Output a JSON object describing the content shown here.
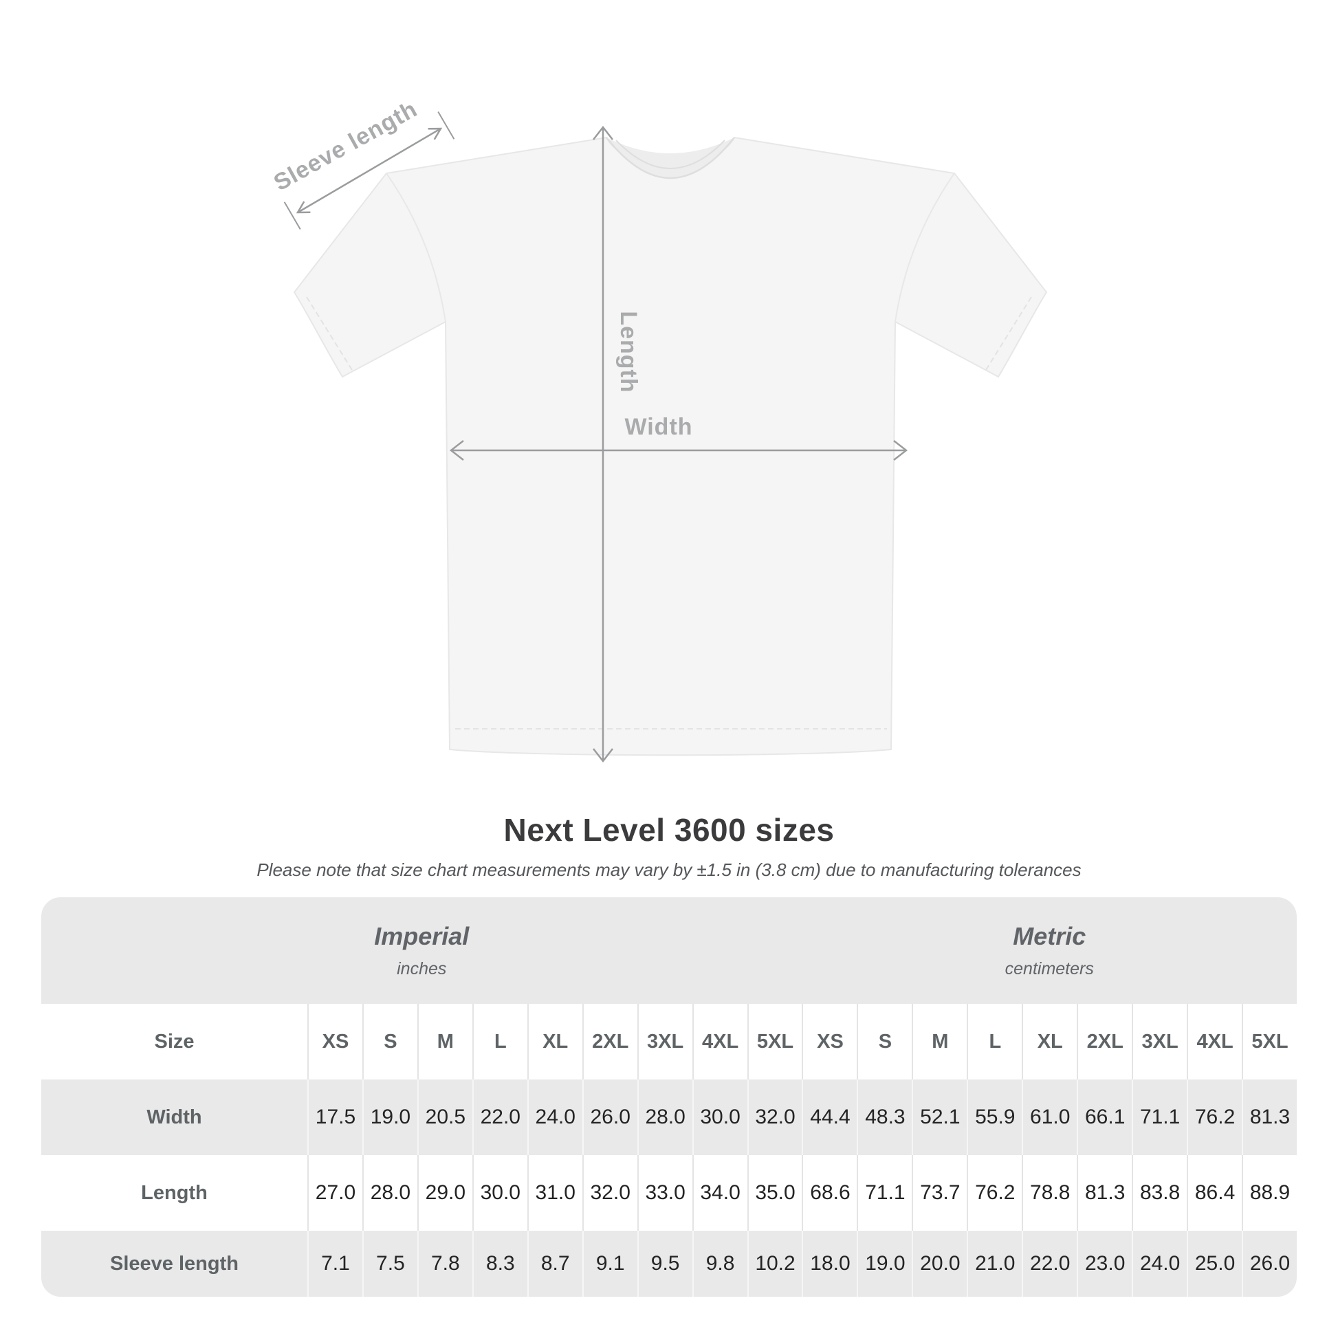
{
  "diagram": {
    "sleeve_length_label": "Sleeve length",
    "length_label": "Length",
    "width_label": "Width"
  },
  "header": {
    "title": "Next Level 3600 sizes",
    "subtitle": "Please note that size chart measurements may vary by ±1.5 in (3.8 cm) due to manufacturing tolerances"
  },
  "chart_data": {
    "type": "table",
    "title": "Next Level 3600 sizes",
    "subtitle": "Please note that size chart measurements may vary by ±1.5 in (3.8 cm) due to manufacturing tolerances",
    "unit_groups": [
      {
        "name": "Imperial",
        "unit": "inches"
      },
      {
        "name": "Metric",
        "unit": "centimeters"
      }
    ],
    "size_column_label": "Size",
    "columns": [
      "XS",
      "S",
      "M",
      "L",
      "XL",
      "2XL",
      "3XL",
      "4XL",
      "5XL"
    ],
    "rows": [
      {
        "label": "Width",
        "imperial": [
          "17.5",
          "19.0",
          "20.5",
          "22.0",
          "24.0",
          "26.0",
          "28.0",
          "30.0",
          "32.0"
        ],
        "metric": [
          "44.4",
          "48.3",
          "52.1",
          "55.9",
          "61.0",
          "66.1",
          "71.1",
          "76.2",
          "81.3"
        ]
      },
      {
        "label": "Length",
        "imperial": [
          "27.0",
          "28.0",
          "29.0",
          "30.0",
          "31.0",
          "32.0",
          "33.0",
          "34.0",
          "35.0"
        ],
        "metric": [
          "68.6",
          "71.1",
          "73.7",
          "76.2",
          "78.8",
          "81.3",
          "83.8",
          "86.4",
          "88.9"
        ]
      },
      {
        "label": "Sleeve length",
        "imperial": [
          "7.1",
          "7.5",
          "7.8",
          "8.3",
          "8.7",
          "9.1",
          "9.5",
          "9.8",
          "10.2"
        ],
        "metric": [
          "18.0",
          "19.0",
          "20.0",
          "21.0",
          "22.0",
          "23.0",
          "24.0",
          "25.0",
          "26.0"
        ]
      }
    ]
  },
  "colors": {
    "table_band": "#e9e9e9",
    "row_alt_white": "#ffffff",
    "header_text": "#5e6366",
    "value_text": "#242424",
    "annotation_line": "#9a9c9e",
    "annotation_label": "#a9abad",
    "title_text": "#3b3b3d",
    "shirt_fill": "#f5f5f5"
  }
}
